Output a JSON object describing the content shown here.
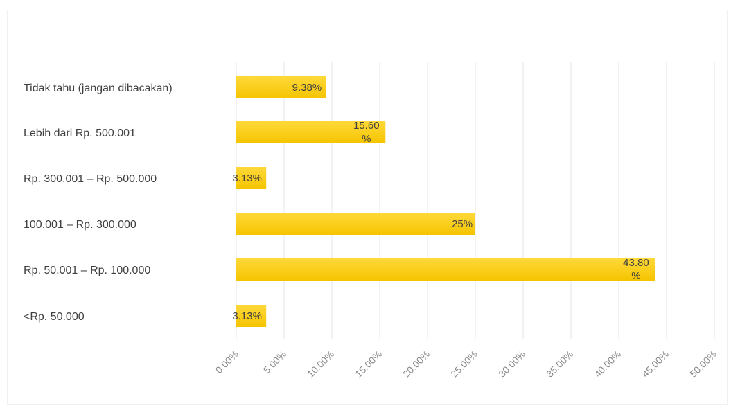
{
  "chart_data": {
    "type": "bar",
    "orientation": "horizontal",
    "categories": [
      "Tidak tahu (jangan dibacakan)",
      "Lebih dari Rp. 500.001",
      "Rp. 300.001 – Rp. 500.000",
      "100.001 – Rp. 300.000",
      "Rp. 50.001 – Rp. 100.000",
      "<Rp. 50.000"
    ],
    "values": [
      9.38,
      15.6,
      3.13,
      25,
      43.8,
      3.13
    ],
    "data_labels": [
      [
        "9.38%"
      ],
      [
        "15.60",
        "%"
      ],
      [
        "3.13%"
      ],
      [
        "25%"
      ],
      [
        "43.80",
        "%"
      ],
      [
        "3.13%"
      ]
    ],
    "x_ticks": [
      "0.00%",
      "5.00%",
      "10.00%",
      "15.00%",
      "20.00%",
      "25.00%",
      "30.00%",
      "35.00%",
      "40.00%",
      "45.00%",
      "50.00%"
    ],
    "xlim": [
      0,
      50
    ],
    "grid": true,
    "legend": "none",
    "bar_color": "#f5c400",
    "bar_color_light": "#ffd93a"
  }
}
